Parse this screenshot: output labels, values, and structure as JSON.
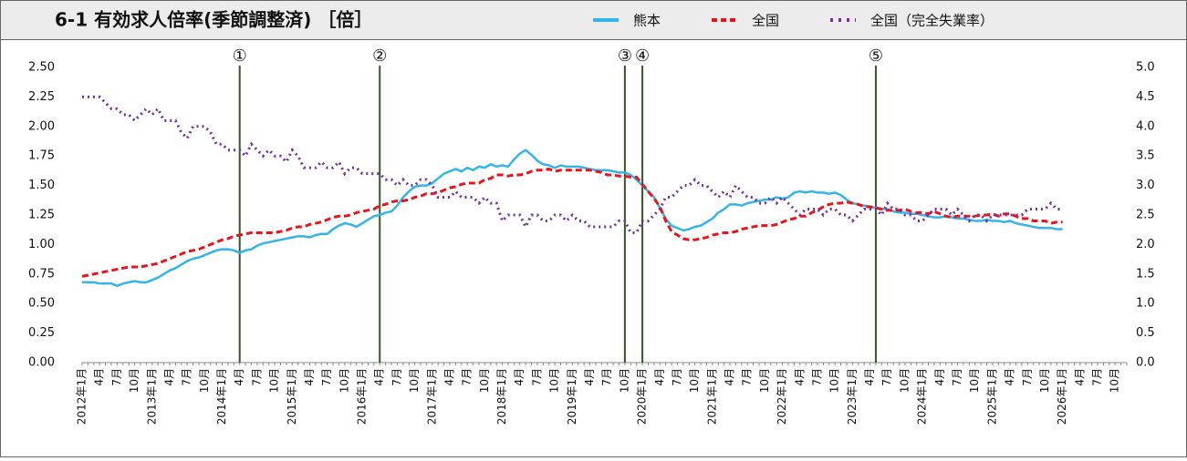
{
  "chart_data": {
    "type": "line",
    "title": "6-1 有効求人倍率(季節調整済) ［倍］",
    "categories": [
      "2012年1月",
      null,
      null,
      "4月",
      null,
      null,
      "7月",
      null,
      null,
      "10月",
      null,
      null,
      "2013年1月",
      null,
      null,
      "4月",
      null,
      null,
      "7月",
      null,
      null,
      "10月",
      null,
      null,
      "2014年1月",
      null,
      null,
      "4月",
      null,
      null,
      "7月",
      null,
      null,
      "10月",
      null,
      null,
      "2015年1月",
      null,
      null,
      "4月",
      null,
      null,
      "7月",
      null,
      null,
      "10月",
      null,
      null,
      "2016年1月",
      null,
      null,
      "4月",
      null,
      null,
      "7月",
      null,
      null,
      "10月",
      null,
      null,
      "2017年1月",
      null,
      null,
      "4月",
      null,
      null,
      "7月",
      null,
      null,
      "10月",
      null,
      null,
      "2018年1月",
      null,
      null,
      "4月",
      null,
      null,
      "7月",
      null,
      null,
      "10月",
      null,
      null,
      "2019年1月",
      null,
      null,
      "4月",
      null,
      null,
      "7月",
      null,
      null,
      "10月",
      null,
      null,
      "2020年1月",
      null,
      null,
      "4月",
      null,
      null,
      "7月",
      null,
      null,
      "10月",
      null,
      null,
      "2021年1月",
      null,
      null,
      "4月",
      null,
      null,
      "7月",
      null,
      null,
      "10月",
      null,
      null,
      "2022年1月",
      null,
      null,
      "4月",
      null,
      null,
      "7月",
      null,
      null,
      "10月",
      null,
      null,
      "2023年1月",
      null,
      null,
      "4月",
      null,
      null,
      "7月",
      null,
      null,
      "10月",
      null,
      null,
      "2024年1月",
      null,
      null,
      "4月",
      null,
      null,
      "7月",
      null,
      null,
      "10月",
      null,
      null,
      "2025年1月",
      null,
      null,
      "4月",
      null,
      null,
      "7月",
      null,
      null,
      "10月",
      null,
      null,
      "2026年1月",
      null,
      null,
      "4月",
      null,
      null,
      "7月",
      null,
      null,
      "10月",
      null,
      null
    ],
    "series": [
      {
        "name": "熊本",
        "color": "#33b5e8",
        "style": "solid",
        "values": [
          0.68,
          0.68,
          0.68,
          0.67,
          0.67,
          0.67,
          0.65,
          0.67,
          0.68,
          0.69,
          0.68,
          0.68,
          0.7,
          0.72,
          0.75,
          0.78,
          0.8,
          0.83,
          0.86,
          0.88,
          0.89,
          0.91,
          0.93,
          0.95,
          0.96,
          0.96,
          0.95,
          0.93,
          0.95,
          0.96,
          0.99,
          1.01,
          1.02,
          1.03,
          1.04,
          1.05,
          1.06,
          1.07,
          1.07,
          1.06,
          1.08,
          1.09,
          1.09,
          1.13,
          1.16,
          1.18,
          1.17,
          1.15,
          1.18,
          1.21,
          1.24,
          1.25,
          1.27,
          1.28,
          1.33,
          1.4,
          1.45,
          1.49,
          1.5,
          1.5,
          1.52,
          1.56,
          1.6,
          1.62,
          1.64,
          1.62,
          1.65,
          1.63,
          1.66,
          1.65,
          1.68,
          1.66,
          1.67,
          1.66,
          1.72,
          1.77,
          1.8,
          1.76,
          1.71,
          1.68,
          1.67,
          1.65,
          1.67,
          1.66,
          1.66,
          1.66,
          1.65,
          1.64,
          1.63,
          1.63,
          1.63,
          1.62,
          1.61,
          1.61,
          1.59,
          1.55,
          1.5,
          1.45,
          1.4,
          1.31,
          1.22,
          1.16,
          1.14,
          1.12,
          1.13,
          1.15,
          1.16,
          1.19,
          1.22,
          1.27,
          1.3,
          1.34,
          1.34,
          1.33,
          1.35,
          1.36,
          1.37,
          1.38,
          1.38,
          1.4,
          1.39,
          1.4,
          1.44,
          1.45,
          1.44,
          1.45,
          1.44,
          1.44,
          1.43,
          1.44,
          1.42,
          1.38,
          1.35,
          1.34,
          1.33,
          1.32,
          1.31,
          1.3,
          1.3,
          1.28,
          1.27,
          1.27,
          1.26,
          1.26,
          1.25,
          1.24,
          1.23,
          1.23,
          1.24,
          1.23,
          1.22,
          1.22,
          1.21,
          1.2,
          1.2,
          1.21,
          1.2,
          1.2,
          1.19,
          1.2,
          1.18,
          1.17,
          1.16,
          1.15,
          1.14,
          1.14,
          1.14,
          1.13,
          1.13,
          null,
          null,
          null,
          null,
          null,
          null,
          null,
          null,
          null,
          null,
          null
        ]
      },
      {
        "name": "全国",
        "color": "#e8141a",
        "style": "dashed",
        "values": [
          0.73,
          0.74,
          0.75,
          0.76,
          0.77,
          0.78,
          0.79,
          0.8,
          0.81,
          0.81,
          0.81,
          0.82,
          0.83,
          0.84,
          0.86,
          0.88,
          0.9,
          0.92,
          0.94,
          0.95,
          0.96,
          0.98,
          1.0,
          1.02,
          1.04,
          1.05,
          1.07,
          1.08,
          1.09,
          1.1,
          1.1,
          1.1,
          1.1,
          1.1,
          1.11,
          1.12,
          1.14,
          1.15,
          1.15,
          1.17,
          1.18,
          1.19,
          1.21,
          1.23,
          1.24,
          1.24,
          1.25,
          1.27,
          1.28,
          1.29,
          1.3,
          1.33,
          1.34,
          1.36,
          1.37,
          1.37,
          1.38,
          1.4,
          1.41,
          1.43,
          1.43,
          1.44,
          1.46,
          1.48,
          1.49,
          1.51,
          1.52,
          1.52,
          1.52,
          1.55,
          1.56,
          1.59,
          1.59,
          1.58,
          1.59,
          1.59,
          1.6,
          1.62,
          1.63,
          1.63,
          1.64,
          1.62,
          1.63,
          1.63,
          1.63,
          1.63,
          1.63,
          1.63,
          1.62,
          1.61,
          1.59,
          1.59,
          1.58,
          1.58,
          1.57,
          1.57,
          1.51,
          1.45,
          1.39,
          1.32,
          1.2,
          1.11,
          1.08,
          1.05,
          1.04,
          1.04,
          1.05,
          1.06,
          1.08,
          1.09,
          1.1,
          1.1,
          1.11,
          1.13,
          1.14,
          1.15,
          1.16,
          1.16,
          1.16,
          1.17,
          1.19,
          1.21,
          1.22,
          1.24,
          1.24,
          1.27,
          1.29,
          1.32,
          1.34,
          1.35,
          1.35,
          1.36,
          1.35,
          1.34,
          1.32,
          1.32,
          1.31,
          1.3,
          1.29,
          1.29,
          1.29,
          1.3,
          1.28,
          1.27,
          1.27,
          1.26,
          1.28,
          1.26,
          1.24,
          1.23,
          1.24,
          1.24,
          1.24,
          1.24,
          1.25,
          1.25,
          1.26,
          1.24,
          1.26,
          1.26,
          1.24,
          1.22,
          1.22,
          1.2,
          1.2,
          1.2,
          1.18,
          1.19,
          1.19,
          null,
          null,
          null,
          null,
          null,
          null,
          null,
          null,
          null,
          null,
          null
        ]
      },
      {
        "name": "全国（完全失業率）",
        "color": "#7030a0",
        "style": "dotted",
        "axis": "y2",
        "values": [
          4.5,
          4.5,
          4.5,
          4.5,
          4.4,
          4.3,
          4.3,
          4.2,
          4.2,
          4.1,
          4.2,
          4.3,
          4.2,
          4.3,
          4.1,
          4.1,
          4.1,
          3.9,
          3.8,
          4.0,
          4.0,
          4.0,
          3.9,
          3.7,
          3.7,
          3.6,
          3.6,
          3.6,
          3.5,
          3.7,
          3.6,
          3.5,
          3.6,
          3.5,
          3.5,
          3.4,
          3.6,
          3.5,
          3.3,
          3.3,
          3.3,
          3.4,
          3.3,
          3.3,
          3.4,
          3.2,
          3.3,
          3.3,
          3.2,
          3.2,
          3.2,
          3.2,
          3.1,
          3.1,
          3.0,
          3.1,
          3.0,
          3.0,
          3.1,
          3.1,
          3.0,
          2.8,
          2.8,
          2.8,
          2.9,
          2.8,
          2.8,
          2.8,
          2.7,
          2.8,
          2.7,
          2.7,
          2.4,
          2.5,
          2.5,
          2.5,
          2.3,
          2.5,
          2.5,
          2.4,
          2.4,
          2.5,
          2.5,
          2.4,
          2.5,
          2.4,
          2.4,
          2.3,
          2.3,
          2.3,
          2.3,
          2.3,
          2.4,
          2.4,
          2.2,
          2.2,
          2.4,
          2.4,
          2.5,
          2.6,
          2.8,
          2.8,
          2.9,
          3.0,
          3.0,
          3.1,
          3.0,
          3.0,
          2.9,
          2.8,
          2.9,
          2.8,
          3.0,
          2.9,
          2.8,
          2.8,
          2.7,
          2.7,
          2.8,
          2.7,
          2.8,
          2.7,
          2.6,
          2.5,
          2.6,
          2.6,
          2.6,
          2.5,
          2.6,
          2.6,
          2.5,
          2.5,
          2.4,
          2.5,
          2.6,
          2.6,
          2.6,
          2.5,
          2.7,
          2.6,
          2.6,
          2.5,
          2.5,
          2.4,
          2.4,
          2.5,
          2.6,
          2.6,
          2.6,
          2.5,
          2.6,
          2.5,
          2.4,
          2.5,
          2.5,
          2.4,
          2.5,
          2.5,
          2.5,
          2.5,
          2.5,
          2.5,
          2.6,
          2.6,
          2.6,
          2.6,
          2.7,
          2.6,
          2.6,
          null,
          null,
          null,
          null,
          null,
          null,
          null,
          null,
          null,
          null,
          null
        ]
      }
    ],
    "ylim": [
      0,
      2.5
    ],
    "yticks": [
      {
        "value": 0,
        "label": "0.00"
      },
      0.25,
      {
        "value": 0.5,
        "label": "0.50"
      },
      0.75,
      {
        "value": 1,
        "label": "1.00"
      },
      1.25,
      {
        "value": 1.5,
        "label": "1.50"
      },
      1.75,
      {
        "value": 2,
        "label": "2.00"
      },
      2.25,
      {
        "value": 2.5,
        "label": "2.50"
      }
    ],
    "y2lim": [
      0,
      5
    ],
    "y2ticks": [
      {
        "value": 0,
        "label": "0.0"
      },
      0.5,
      {
        "value": 1,
        "label": "1.0"
      },
      1.5,
      {
        "value": 2,
        "label": "2.0"
      },
      2.5,
      {
        "value": 3,
        "label": "3.0"
      },
      3.5,
      {
        "value": 4,
        "label": "4.0"
      },
      4.5,
      {
        "value": 5,
        "label": "5.0"
      }
    ],
    "markers": [
      {
        "label": "①",
        "at": 27
      },
      {
        "label": "②",
        "at": 51
      },
      {
        "label": "③",
        "at": 93
      },
      {
        "label": "④",
        "at": 96
      },
      {
        "label": "⑤",
        "at": 136
      }
    ],
    "marker_color": "#375623",
    "grid": false
  }
}
